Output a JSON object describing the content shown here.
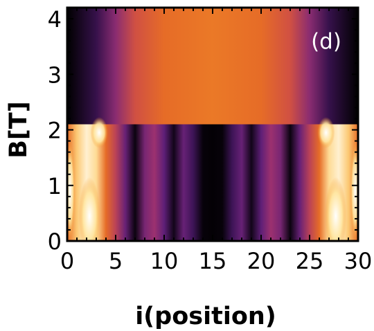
{
  "chart_data": {
    "type": "heatmap",
    "panel_label": "(d)",
    "xlabel": "i(position)",
    "ylabel": "B[T]",
    "xlim": [
      0,
      30
    ],
    "ylim": [
      0,
      4.2
    ],
    "x_ticks": [
      0,
      5,
      10,
      15,
      20,
      25,
      30
    ],
    "y_ticks": [
      0,
      1,
      2,
      3,
      4
    ],
    "colormap": "inferno-like (black → purple → orange → white)",
    "colors": {
      "low": "#000000",
      "mid_low": "#5b1f80",
      "mid": "#c0415f",
      "mid_high": "#e8731f",
      "high": "#ffffff",
      "panel_label": "#ffffff"
    },
    "regions": [
      {
        "name": "high-field region",
        "b_range": [
          2.1,
          4.2
        ],
        "description": "uniform in B; single broad maximum centered near i=15, dark at both edges",
        "profile_i": [
          0,
          3,
          5,
          7,
          10,
          15,
          20,
          23,
          25,
          27,
          30
        ],
        "profile_value": [
          0.0,
          0.2,
          0.4,
          0.58,
          0.7,
          0.74,
          0.7,
          0.58,
          0.4,
          0.2,
          0.0
        ]
      },
      {
        "name": "low-field region",
        "b_range": [
          0,
          2.1
        ],
        "description": "bright edge lobes near i≈2 and i≈28; alternating dark/purple stripes in the middle",
        "profile_i": [
          0,
          1,
          2,
          3,
          4,
          5,
          6,
          7,
          8,
          9,
          10,
          11,
          12,
          13,
          14,
          15,
          16,
          17,
          18,
          19,
          20,
          21,
          22,
          23,
          24,
          25,
          26,
          27,
          28,
          29,
          30
        ],
        "profile_value": [
          0.7,
          0.9,
          0.97,
          0.93,
          0.7,
          0.52,
          0.32,
          0.06,
          0.36,
          0.44,
          0.3,
          0.1,
          0.32,
          0.22,
          0.04,
          0.02,
          0.04,
          0.22,
          0.32,
          0.1,
          0.3,
          0.44,
          0.36,
          0.06,
          0.32,
          0.52,
          0.7,
          0.93,
          0.97,
          0.9,
          0.7
        ]
      }
    ]
  }
}
